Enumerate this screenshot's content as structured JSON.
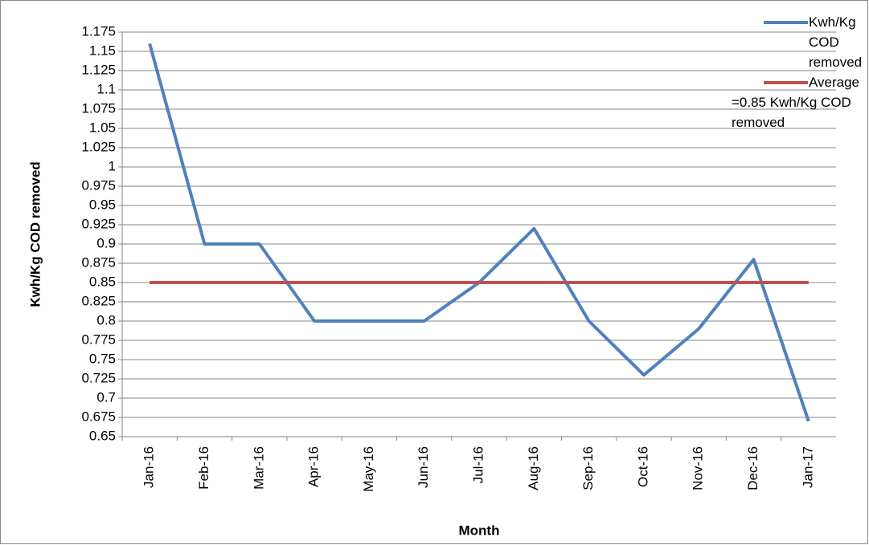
{
  "chart_data": {
    "type": "line",
    "y_label": "Kwh/Kg COD removed",
    "x_label": "Month",
    "categories": [
      "Jan-16",
      "Feb-16",
      "Mar-16",
      "Apr-16",
      "May-16",
      "Jun-16",
      "Jul-16",
      "Aug-16",
      "Sep-16",
      "Oct-16",
      "Nov-16",
      "Dec-16",
      "Jan-17"
    ],
    "series": [
      {
        "name": "Kwh/Kg COD removed",
        "color": "#4f81bd",
        "values": [
          1.16,
          0.9,
          0.9,
          0.8,
          0.8,
          0.8,
          0.85,
          0.92,
          0.8,
          0.73,
          0.79,
          0.88,
          0.67
        ]
      },
      {
        "name": "Average =0.85 Kwh/Kg COD removed",
        "color": "#c0504d",
        "values": [
          0.85,
          0.85,
          0.85,
          0.85,
          0.85,
          0.85,
          0.85,
          0.85,
          0.85,
          0.85,
          0.85,
          0.85,
          0.85
        ]
      }
    ],
    "ylim": [
      0.65,
      1.175
    ],
    "yticks": [
      0.65,
      0.675,
      0.7,
      0.725,
      0.75,
      0.775,
      0.8,
      0.825,
      0.85,
      0.875,
      0.9,
      0.925,
      0.95,
      0.975,
      1,
      1.025,
      1.05,
      1.075,
      1.1,
      1.125,
      1.15,
      1.175
    ],
    "grid": true
  }
}
